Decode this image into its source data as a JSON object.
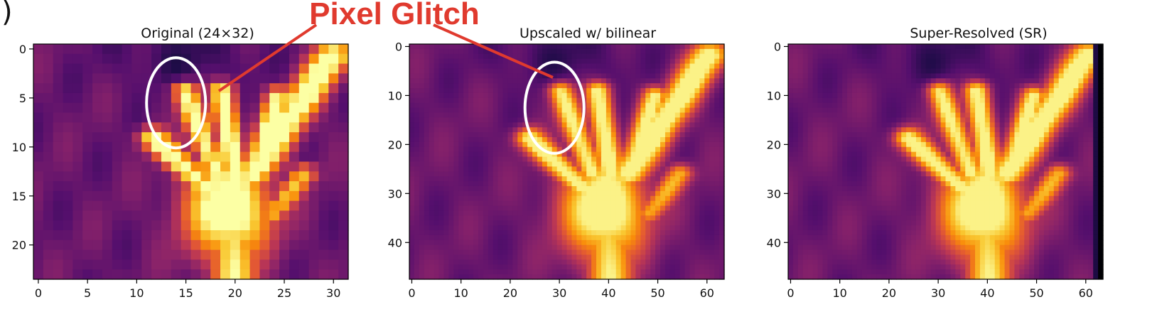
{
  "figure": {
    "panel_label": ")",
    "annotation": {
      "text": "Pixel Glitch",
      "color": "#e03a2e"
    },
    "ellipse_color": "#ffffff",
    "colormap": "inferno"
  },
  "chart_data": [
    {
      "type": "heatmap",
      "title": "Original (24×32)",
      "grid": [
        24,
        32
      ],
      "xlim": [
        0,
        32
      ],
      "ylim": [
        24,
        0
      ],
      "xticks": [
        0,
        5,
        10,
        15,
        20,
        25,
        30
      ],
      "yticks": [
        0,
        5,
        10,
        15,
        20
      ],
      "xtick_labels": [
        "0",
        "5",
        "10",
        "15",
        "20",
        "25",
        "30"
      ],
      "ytick_labels": [
        "0",
        "5",
        "10",
        "15",
        "20"
      ],
      "highlight": {
        "type": "ellipse",
        "center": [
          14.5,
          6
        ],
        "radii": [
          3,
          4.6
        ]
      },
      "render": "pixelated"
    },
    {
      "type": "heatmap",
      "title": "Upscaled w/ bilinear",
      "grid": [
        48,
        64
      ],
      "xlim": [
        0,
        64
      ],
      "ylim": [
        48,
        0
      ],
      "xticks": [
        0,
        10,
        20,
        30,
        40,
        50,
        60
      ],
      "yticks": [
        0,
        10,
        20,
        30,
        40
      ],
      "xtick_labels": [
        "0",
        "10",
        "20",
        "30",
        "40",
        "50",
        "60"
      ],
      "ytick_labels": [
        "0",
        "10",
        "20",
        "30",
        "40"
      ],
      "highlight": {
        "type": "ellipse",
        "center": [
          29.5,
          13
        ],
        "radii": [
          6,
          9.3
        ]
      },
      "render": "smooth"
    },
    {
      "type": "heatmap",
      "title": "Super-Resolved (SR)",
      "grid": [
        48,
        64
      ],
      "xlim": [
        0,
        64
      ],
      "ylim": [
        48,
        0
      ],
      "xticks": [
        0,
        10,
        20,
        30,
        40,
        50,
        60
      ],
      "yticks": [
        0,
        10,
        20,
        30,
        40
      ],
      "xtick_labels": [
        "0",
        "10",
        "20",
        "30",
        "40",
        "50",
        "60"
      ],
      "ytick_labels": [
        "0",
        "10",
        "20",
        "30",
        "40"
      ],
      "render": "smooth",
      "dark_right_edge": true
    }
  ]
}
